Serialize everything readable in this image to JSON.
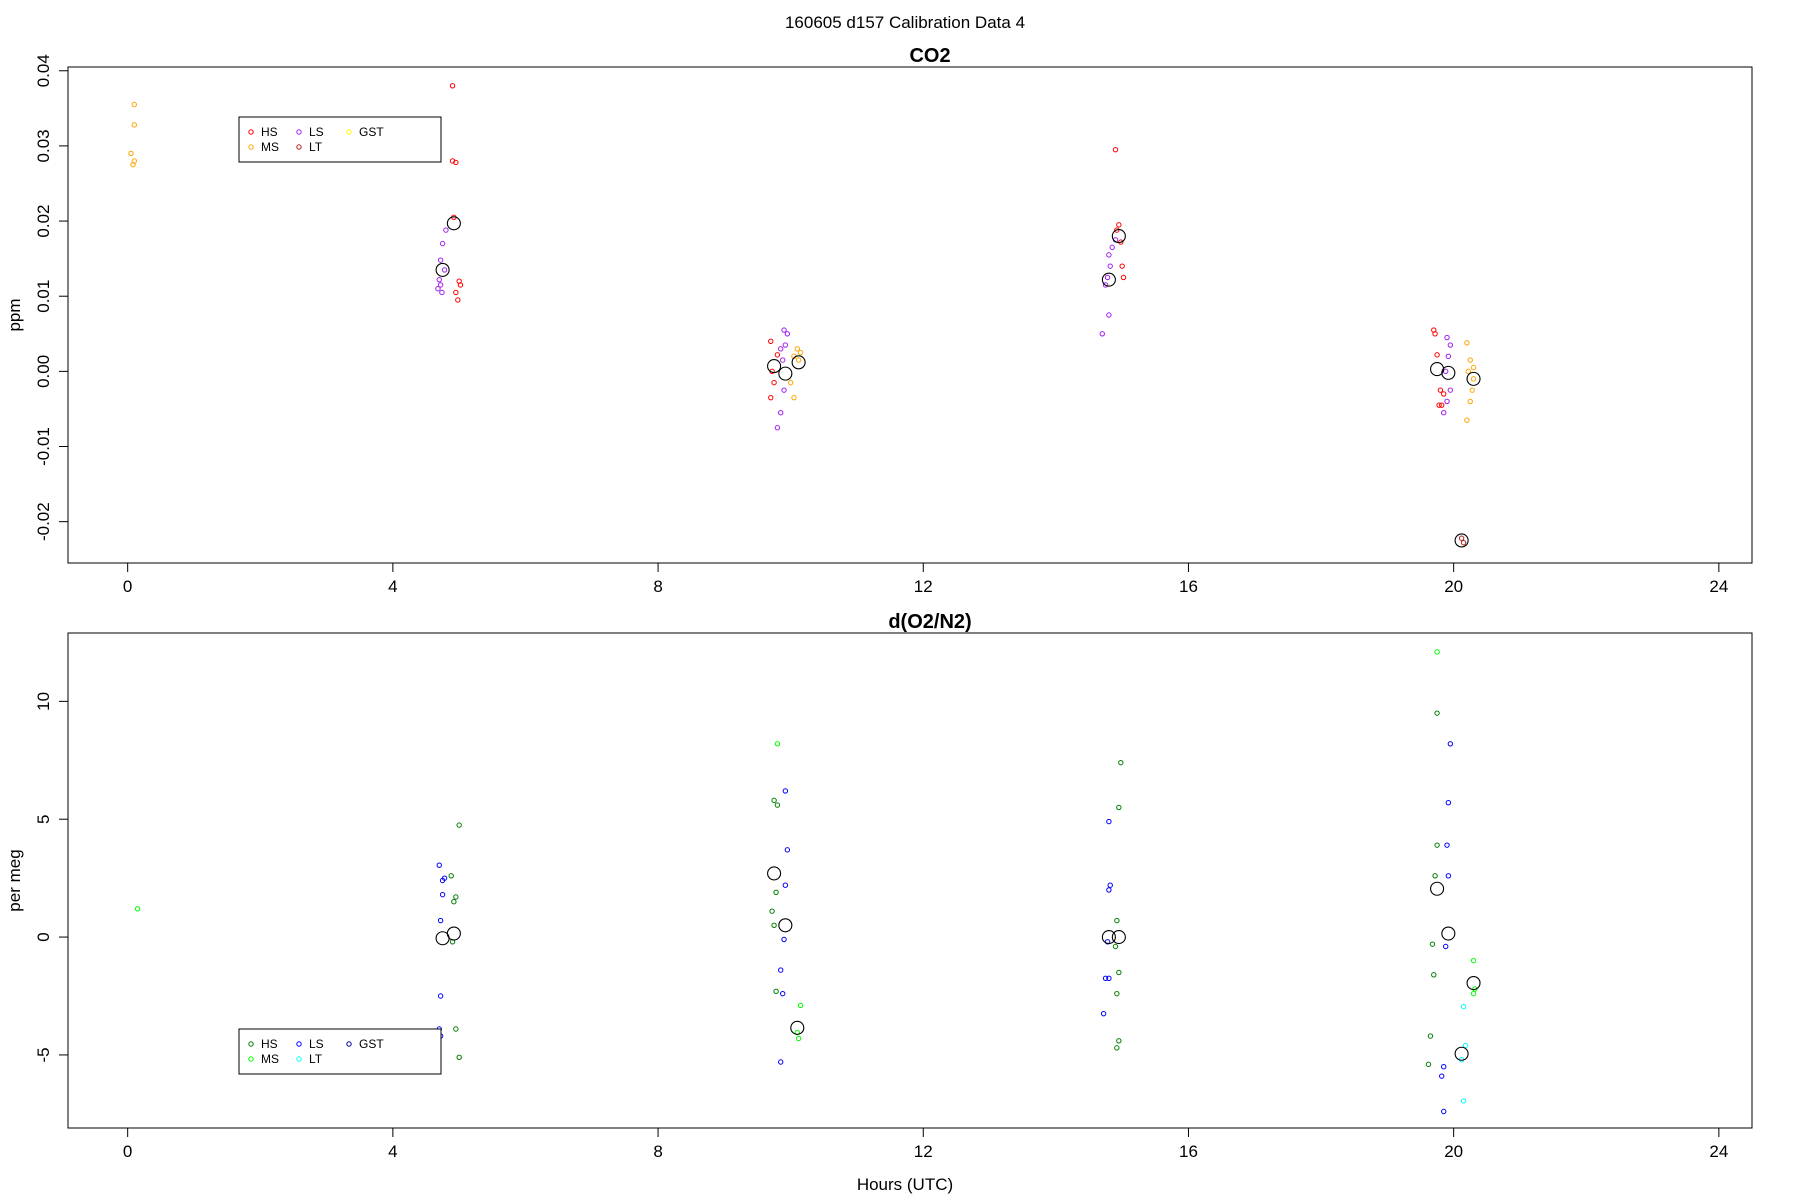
{
  "figure": {
    "title": "160605   d157   Calibration Data 4",
    "xlabel": "Hours (UTC)"
  },
  "chart_data": [
    {
      "type": "scatter",
      "title": "CO2",
      "xlabel": "",
      "ylabel": "ppm",
      "xlim": [
        -0.9,
        24.5
      ],
      "ylim": [
        -0.0255,
        0.0405
      ],
      "x_ticks": [
        "0",
        "4",
        "8",
        "12",
        "16",
        "20",
        "24"
      ],
      "x_tick_values": [
        0,
        4,
        8,
        12,
        16,
        20,
        24
      ],
      "y_ticks": [
        "-0.02",
        "-0.01",
        "0.00",
        "0.01",
        "0.02",
        "0.03",
        "0.04"
      ],
      "y_tick_values": [
        -0.02,
        -0.01,
        0.0,
        0.01,
        0.02,
        0.03,
        0.04
      ],
      "legend": {
        "placement": "upper-left",
        "entries": [
          {
            "label": "HS",
            "color": "#ff0000"
          },
          {
            "label": "MS",
            "color": "#ffa500"
          },
          {
            "label": "LS",
            "color": "#a020f0"
          },
          {
            "label": "LT",
            "color": "#b22222"
          },
          {
            "label": "GST",
            "color": "#ffff00"
          }
        ]
      },
      "series": [
        {
          "name": "HS",
          "color": "#ff0000",
          "points": [
            [
              4.9,
              0.038
            ],
            [
              4.9,
              0.028
            ],
            [
              4.95,
              0.0278
            ],
            [
              5.0,
              0.012
            ],
            [
              5.02,
              0.0115
            ],
            [
              4.95,
              0.0105
            ],
            [
              4.98,
              0.0095
            ],
            [
              4.92,
              0.0205
            ],
            [
              9.7,
              0.004
            ],
            [
              9.72,
              0.0
            ],
            [
              9.75,
              -0.0015
            ],
            [
              9.7,
              -0.0035
            ],
            [
              9.8,
              0.0022
            ],
            [
              14.9,
              0.0295
            ],
            [
              14.95,
              0.0195
            ],
            [
              14.92,
              0.0188
            ],
            [
              14.98,
              0.0172
            ],
            [
              15.0,
              0.014
            ],
            [
              15.02,
              0.0125
            ],
            [
              19.7,
              0.0055
            ],
            [
              19.72,
              0.005
            ],
            [
              19.75,
              0.0022
            ],
            [
              19.8,
              -0.0025
            ],
            [
              19.78,
              -0.0045
            ],
            [
              19.82,
              -0.0045
            ],
            [
              19.85,
              -0.003
            ]
          ]
        },
        {
          "name": "MS",
          "color": "#ffa500",
          "points": [
            [
              0.1,
              0.0355
            ],
            [
              0.1,
              0.0328
            ],
            [
              0.05,
              0.029
            ],
            [
              0.1,
              0.028
            ],
            [
              0.08,
              0.0275
            ],
            [
              10.1,
              0.003
            ],
            [
              10.15,
              0.0025
            ],
            [
              10.05,
              0.002
            ],
            [
              10.12,
              0.0015
            ],
            [
              10.0,
              -0.0015
            ],
            [
              10.05,
              -0.0035
            ],
            [
              20.2,
              0.0038
            ],
            [
              20.25,
              0.0015
            ],
            [
              20.3,
              0.0005
            ],
            [
              20.22,
              0.0
            ],
            [
              20.28,
              -0.0025
            ],
            [
              20.25,
              -0.004
            ],
            [
              20.2,
              -0.0065
            ],
            [
              20.3,
              -0.001
            ]
          ]
        },
        {
          "name": "LS",
          "color": "#a020f0",
          "points": [
            [
              4.8,
              0.0188
            ],
            [
              4.75,
              0.017
            ],
            [
              4.72,
              0.0148
            ],
            [
              4.78,
              0.0135
            ],
            [
              4.7,
              0.0122
            ],
            [
              4.72,
              0.0115
            ],
            [
              4.68,
              0.011
            ],
            [
              4.74,
              0.0105
            ],
            [
              9.9,
              0.0055
            ],
            [
              9.95,
              0.005
            ],
            [
              9.85,
              0.003
            ],
            [
              9.92,
              0.0035
            ],
            [
              9.88,
              0.0015
            ],
            [
              9.9,
              -0.0025
            ],
            [
              9.85,
              -0.0055
            ],
            [
              9.8,
              -0.0075
            ],
            [
              14.7,
              0.005
            ],
            [
              14.8,
              0.0075
            ],
            [
              14.75,
              0.0115
            ],
            [
              14.78,
              0.0125
            ],
            [
              14.82,
              0.014
            ],
            [
              14.8,
              0.0155
            ],
            [
              14.85,
              0.0165
            ],
            [
              14.9,
              0.0175
            ],
            [
              19.9,
              0.0045
            ],
            [
              19.95,
              0.0035
            ],
            [
              19.92,
              0.002
            ],
            [
              19.95,
              -0.0025
            ],
            [
              19.9,
              -0.004
            ],
            [
              19.85,
              -0.0055
            ],
            [
              19.88,
              0.0
            ]
          ]
        },
        {
          "name": "LT",
          "color": "#b22222",
          "points": [
            [
              20.12,
              -0.0222
            ],
            [
              20.15,
              -0.0228
            ]
          ]
        },
        {
          "name": "GST",
          "color": "#ffff00",
          "points": []
        },
        {
          "name": "",
          "color": "#000000",
          "marker": "large",
          "points": [
            [
              4.75,
              0.0135
            ],
            [
              4.92,
              0.0197
            ],
            [
              9.75,
              0.0007
            ],
            [
              9.92,
              -0.0003
            ],
            [
              10.12,
              0.0012
            ],
            [
              14.8,
              0.0122
            ],
            [
              14.95,
              0.018
            ],
            [
              19.75,
              0.0003
            ],
            [
              19.92,
              -0.0002
            ],
            [
              20.3,
              -0.001
            ],
            [
              20.12,
              -0.0225
            ]
          ]
        }
      ]
    },
    {
      "type": "scatter",
      "title": "d(O2/N2)",
      "xlabel": "Hours (UTC)",
      "ylabel": "per meg",
      "xlim": [
        -0.9,
        24.5
      ],
      "ylim": [
        -8.1,
        12.9
      ],
      "x_ticks": [
        "0",
        "4",
        "8",
        "12",
        "16",
        "20",
        "24"
      ],
      "x_tick_values": [
        0,
        4,
        8,
        12,
        16,
        20,
        24
      ],
      "y_ticks": [
        "-5",
        "0",
        "5",
        "10"
      ],
      "y_tick_values": [
        -5,
        0,
        5,
        10
      ],
      "legend": {
        "placement": "lower-left",
        "entries": [
          {
            "label": "HS",
            "color": "#008000"
          },
          {
            "label": "MS",
            "color": "#00ff00"
          },
          {
            "label": "LS",
            "color": "#0000ff"
          },
          {
            "label": "LT",
            "color": "#00ffff"
          },
          {
            "label": "GST",
            "color": "#00008b"
          }
        ]
      },
      "series": [
        {
          "name": "HS",
          "color": "#008000",
          "points": [
            [
              5.0,
              4.75
            ],
            [
              4.88,
              2.6
            ],
            [
              4.95,
              1.7
            ],
            [
              4.92,
              1.5
            ],
            [
              4.9,
              -0.2
            ],
            [
              4.95,
              -3.9
            ],
            [
              5.0,
              -5.1
            ],
            [
              9.75,
              5.8
            ],
            [
              9.8,
              5.6
            ],
            [
              9.72,
              1.1
            ],
            [
              9.78,
              1.9
            ],
            [
              9.75,
              0.5
            ],
            [
              9.78,
              -2.3
            ],
            [
              14.95,
              5.5
            ],
            [
              14.98,
              7.4
            ],
            [
              14.92,
              0.7
            ],
            [
              14.9,
              -0.4
            ],
            [
              14.95,
              -1.5
            ],
            [
              14.92,
              -2.4
            ],
            [
              14.95,
              -4.4
            ],
            [
              14.92,
              -4.7
            ],
            [
              19.75,
              9.5
            ],
            [
              19.75,
              3.9
            ],
            [
              19.72,
              2.6
            ],
            [
              19.68,
              -0.3
            ],
            [
              19.7,
              -1.6
            ],
            [
              19.65,
              -4.2
            ],
            [
              19.62,
              -5.4
            ]
          ]
        },
        {
          "name": "MS",
          "color": "#00ff00",
          "points": [
            [
              0.15,
              1.2
            ],
            [
              9.8,
              8.2
            ],
            [
              10.15,
              -2.9
            ],
            [
              10.12,
              -4.3
            ],
            [
              10.1,
              -4.05
            ],
            [
              20.3,
              -1.0
            ],
            [
              20.32,
              -2.2
            ],
            [
              20.3,
              -2.4
            ],
            [
              19.75,
              12.1
            ]
          ]
        },
        {
          "name": "LS",
          "color": "#0000ff",
          "points": [
            [
              4.7,
              3.05
            ],
            [
              4.78,
              2.5
            ],
            [
              4.75,
              2.4
            ],
            [
              4.75,
              1.8
            ],
            [
              4.72,
              0.7
            ],
            [
              4.72,
              -2.5
            ],
            [
              4.7,
              -3.9
            ],
            [
              4.72,
              -4.2
            ],
            [
              9.92,
              6.2
            ],
            [
              9.95,
              3.7
            ],
            [
              9.92,
              2.2
            ],
            [
              9.85,
              -1.4
            ],
            [
              9.88,
              -2.4
            ],
            [
              9.9,
              -0.1
            ],
            [
              9.85,
              -5.3
            ],
            [
              14.8,
              4.9
            ],
            [
              14.82,
              2.2
            ],
            [
              14.8,
              2.0
            ],
            [
              14.78,
              -0.2
            ],
            [
              14.75,
              -1.75
            ],
            [
              14.8,
              -1.75
            ],
            [
              14.72,
              -3.25
            ],
            [
              19.95,
              8.2
            ],
            [
              19.92,
              5.7
            ],
            [
              19.9,
              3.9
            ],
            [
              19.92,
              2.6
            ],
            [
              19.88,
              -0.4
            ],
            [
              19.85,
              -5.5
            ],
            [
              19.82,
              -5.9
            ],
            [
              19.85,
              -7.4
            ]
          ]
        },
        {
          "name": "LT",
          "color": "#00ffff",
          "points": [
            [
              20.15,
              -2.95
            ],
            [
              20.18,
              -4.6
            ],
            [
              20.12,
              -5.2
            ],
            [
              20.15,
              -6.95
            ]
          ]
        },
        {
          "name": "GST",
          "color": "#00008b",
          "points": []
        },
        {
          "name": "",
          "color": "#000000",
          "marker": "large",
          "points": [
            [
              4.75,
              -0.05
            ],
            [
              4.92,
              0.15
            ],
            [
              9.75,
              2.7
            ],
            [
              9.92,
              0.5
            ],
            [
              10.1,
              -3.85
            ],
            [
              14.8,
              0.0
            ],
            [
              14.95,
              0.0
            ],
            [
              19.75,
              2.05
            ],
            [
              19.92,
              0.15
            ],
            [
              20.3,
              -1.95
            ],
            [
              20.12,
              -4.95
            ]
          ]
        }
      ]
    }
  ]
}
